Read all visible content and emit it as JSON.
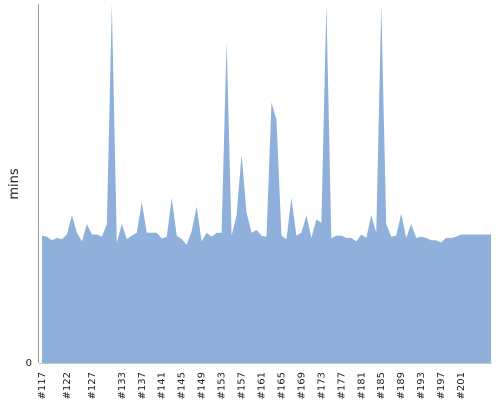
{
  "chart_data": {
    "type": "area",
    "ylabel": "mins",
    "ylim": [
      0,
      62
    ],
    "y_ticks": [
      0
    ],
    "x_tick_labels": [
      "#117",
      "#122",
      "#127",
      "#133",
      "#137",
      "#141",
      "#145",
      "#149",
      "#153",
      "#157",
      "#161",
      "#165",
      "#169",
      "#173",
      "#177",
      "#181",
      "#185",
      "#189",
      "#193",
      "#197",
      "#201"
    ],
    "x": [
      117,
      118,
      119,
      120,
      121,
      122,
      123,
      124,
      125,
      126,
      127,
      128,
      129,
      130,
      131,
      132,
      133,
      134,
      135,
      136,
      137,
      138,
      139,
      140,
      141,
      142,
      143,
      144,
      145,
      146,
      147,
      148,
      149,
      150,
      151,
      152,
      153,
      154,
      155,
      156,
      157,
      158,
      159,
      160,
      161,
      162,
      163,
      164,
      165,
      166,
      167,
      168,
      169,
      170,
      171,
      172,
      173,
      174,
      175,
      176,
      177,
      178,
      179,
      180,
      181,
      182,
      183,
      184,
      185,
      186,
      187,
      188,
      189,
      190,
      191,
      192,
      193,
      194,
      195,
      196,
      197,
      198,
      199,
      200,
      201,
      202,
      203,
      204,
      205,
      206,
      207
    ],
    "values": [
      22.0,
      21.8,
      21.2,
      21.6,
      21.4,
      22.2,
      25.5,
      22.5,
      21.0,
      24.0,
      22.2,
      22.2,
      21.8,
      24.0,
      62.0,
      20.8,
      24.0,
      21.4,
      22.0,
      22.5,
      27.8,
      22.5,
      22.5,
      22.5,
      21.5,
      21.8,
      28.5,
      22.0,
      21.4,
      20.4,
      22.8,
      27.0,
      21.0,
      22.5,
      21.8,
      22.5,
      22.5,
      55.5,
      22.0,
      25.5,
      36.0,
      26.0,
      22.5,
      23.0,
      22.0,
      21.8,
      45.0,
      42.0,
      22.0,
      21.4,
      28.5,
      22.0,
      22.5,
      25.5,
      21.6,
      24.8,
      24.2,
      62.0,
      21.5,
      22.0,
      22.0,
      21.6,
      21.6,
      21.0,
      22.2,
      21.6,
      25.5,
      22.5,
      62.0,
      24.0,
      21.8,
      22.0,
      25.8,
      21.6,
      24.0,
      21.6,
      21.8,
      21.6,
      21.2,
      21.2,
      20.8,
      21.6,
      21.6,
      21.8,
      22.2,
      22.2,
      22.2,
      22.2,
      22.2,
      22.2,
      22.2
    ],
    "color": "#8eb0db",
    "grid": false
  }
}
